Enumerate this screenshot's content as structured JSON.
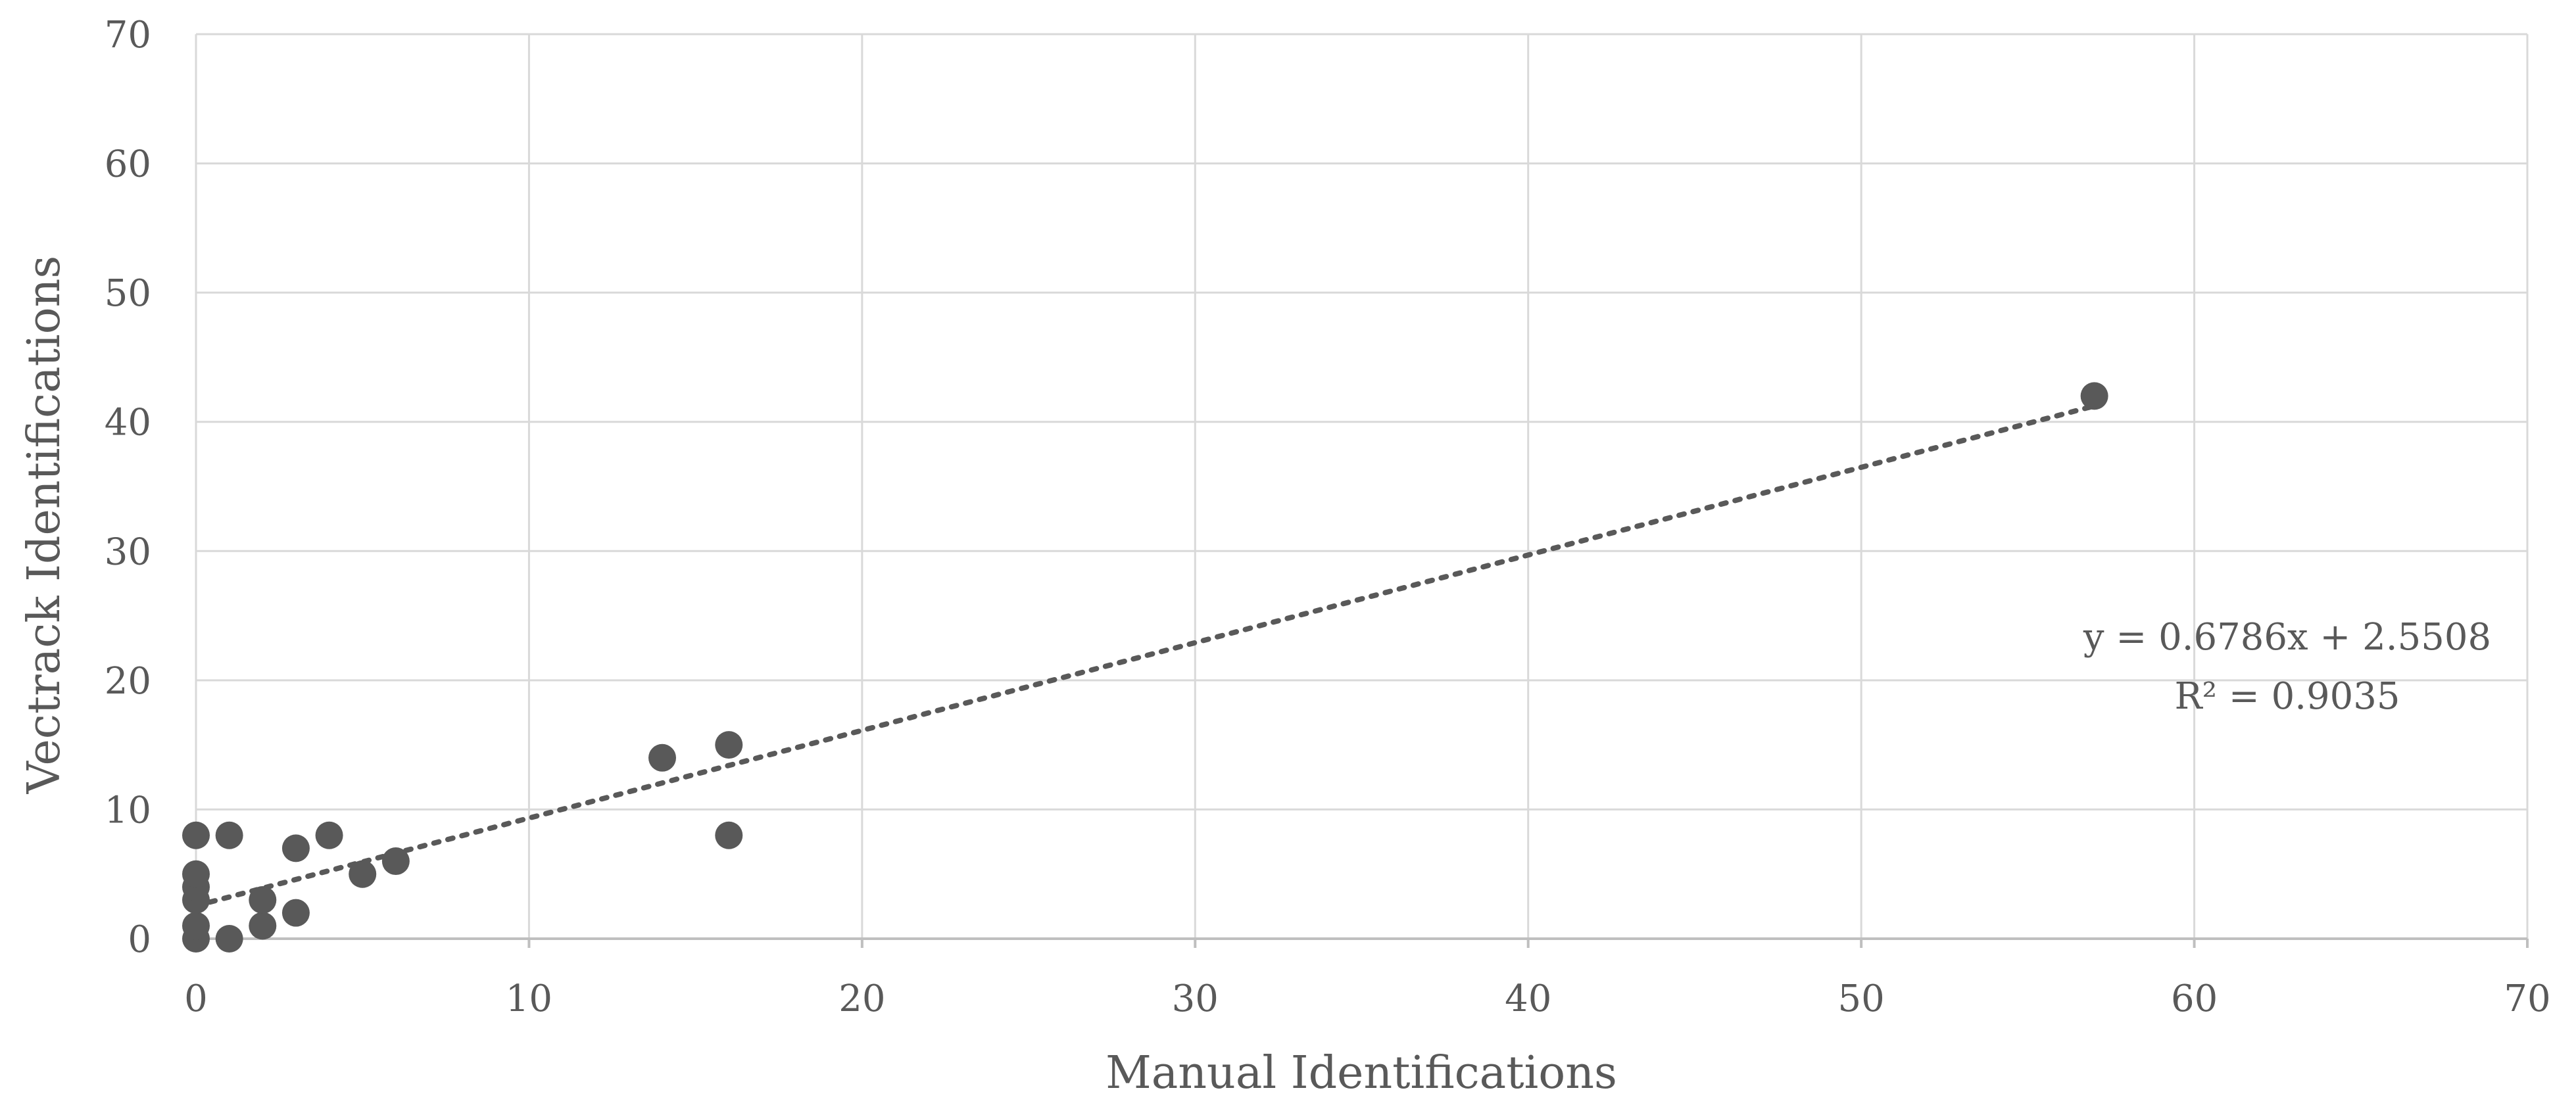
{
  "chart_data": {
    "type": "scatter",
    "title": "",
    "xlabel": "Manual Identifications",
    "ylabel": "Vectrack Identifications",
    "xlim": [
      0,
      70
    ],
    "ylim": [
      0,
      70
    ],
    "xticks": [
      0,
      10,
      20,
      30,
      40,
      50,
      60,
      70
    ],
    "yticks": [
      0,
      10,
      20,
      30,
      40,
      50,
      60,
      70
    ],
    "grid": true,
    "legend": "none",
    "colors": {
      "marker": "#595959",
      "trendline": "#595959",
      "grid": "#d9d9d9",
      "text": "#595959"
    },
    "series": [
      {
        "points": [
          {
            "x": 0,
            "y": 0
          },
          {
            "x": 0,
            "y": 1
          },
          {
            "x": 0,
            "y": 3
          },
          {
            "x": 0,
            "y": 4
          },
          {
            "x": 0,
            "y": 5
          },
          {
            "x": 0,
            "y": 8
          },
          {
            "x": 1,
            "y": 0
          },
          {
            "x": 1,
            "y": 8
          },
          {
            "x": 2,
            "y": 1
          },
          {
            "x": 2,
            "y": 3
          },
          {
            "x": 3,
            "y": 2
          },
          {
            "x": 3,
            "y": 7
          },
          {
            "x": 4,
            "y": 8
          },
          {
            "x": 5,
            "y": 5
          },
          {
            "x": 6,
            "y": 6
          },
          {
            "x": 14,
            "y": 14
          },
          {
            "x": 16,
            "y": 8
          },
          {
            "x": 16,
            "y": 15
          },
          {
            "x": 57,
            "y": 42
          }
        ]
      }
    ],
    "trendline": {
      "type": "linear",
      "style": "dotted",
      "slope": 0.6786,
      "intercept": 2.5508,
      "x_range": [
        0,
        57
      ],
      "equation_label": "y = 0.6786x + 2.5508",
      "r2_label": "R² = 0.9035"
    }
  }
}
